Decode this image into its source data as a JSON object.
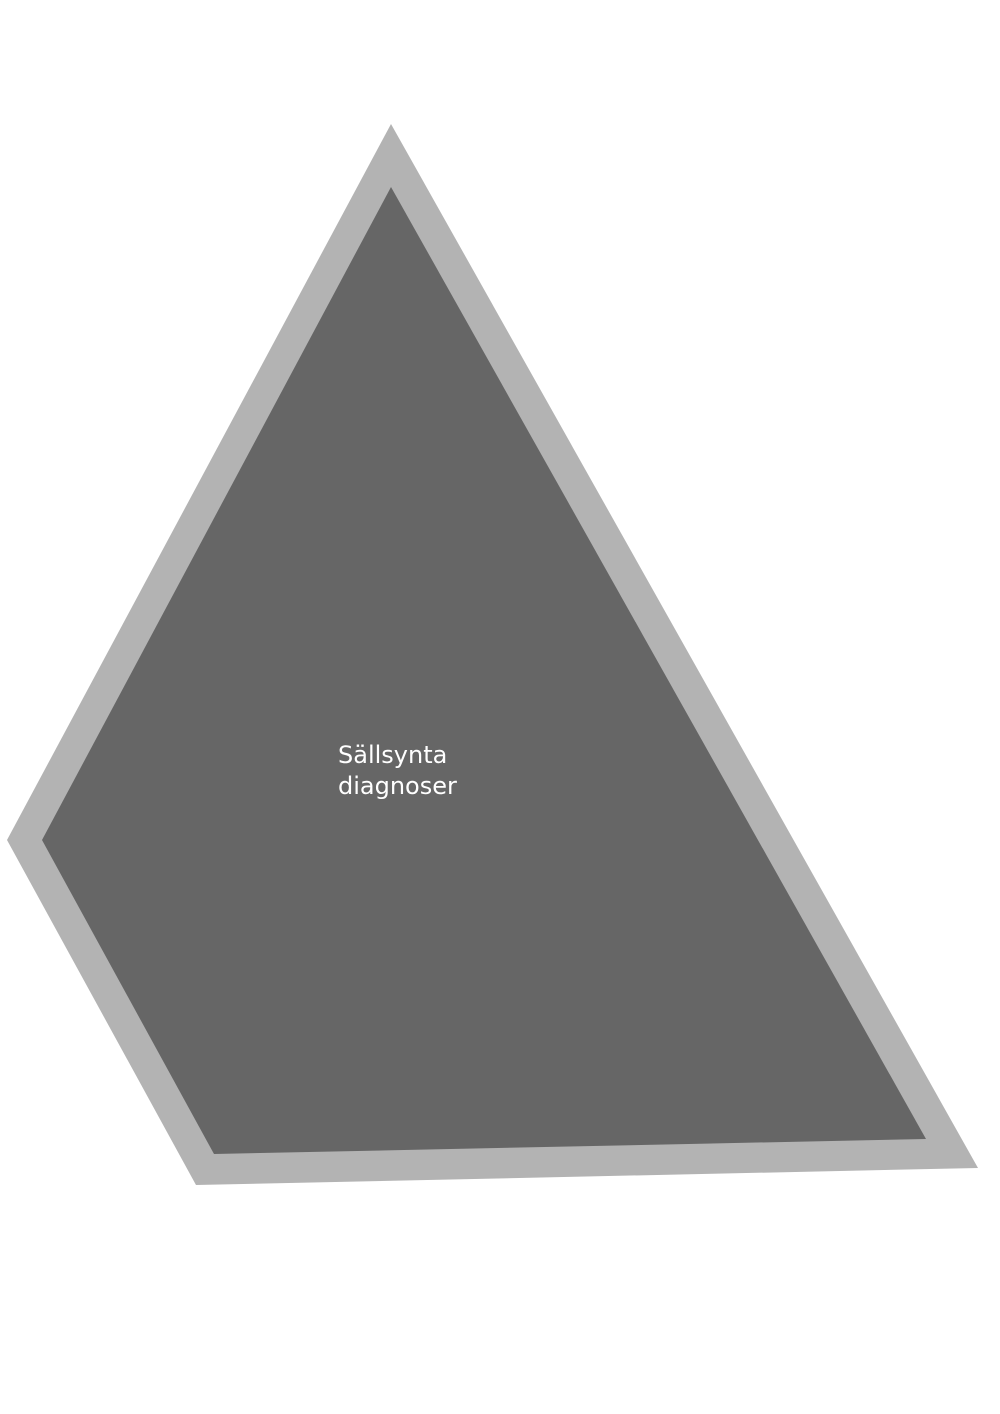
{
  "diagram": {
    "label_line1": "Sällsynta",
    "label_line2": "diagnoser",
    "colors": {
      "background": "#ffffff",
      "fill": "#666666",
      "outline": "#b3b3b3",
      "text": "#ffffff"
    }
  }
}
